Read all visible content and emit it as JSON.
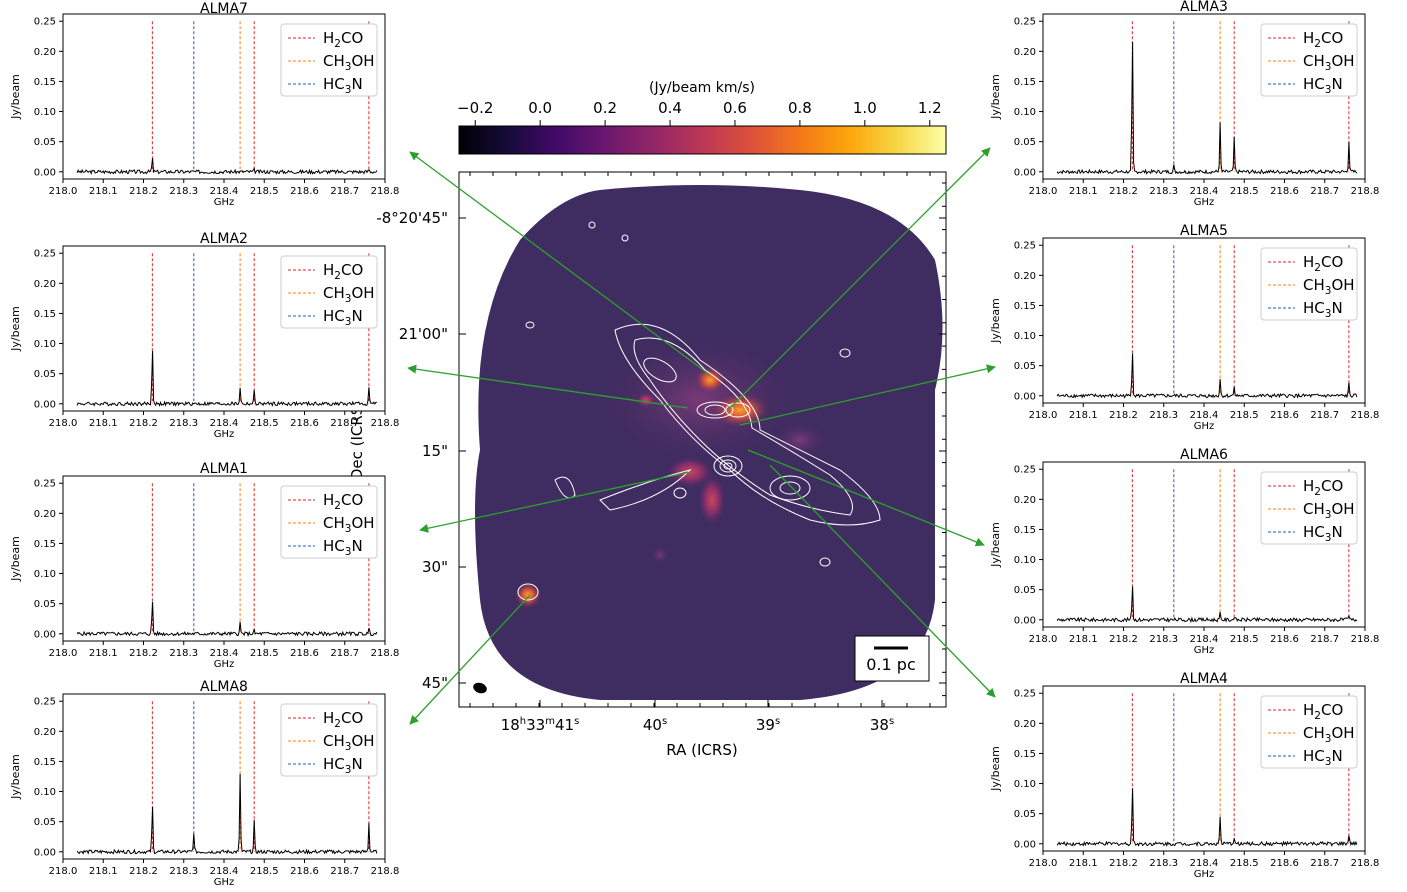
{
  "chart_data": [
    {
      "type": "image",
      "name": "moment-map",
      "xlabel": "RA (ICRS)",
      "ylabel": "Dec (ICRS)",
      "x_tick_labels": [
        "18h33m41s",
        "40s",
        "39s",
        "38s"
      ],
      "y_tick_labels": [
        "-8°20'45\"",
        "21'00\"",
        "15\"",
        "30\"",
        "45\""
      ],
      "colorbar": {
        "label": "(Jy/beam km/s)",
        "range": [
          -0.25,
          1.25
        ],
        "tick_labels": [
          "−0.2",
          "0.0",
          "0.2",
          "0.4",
          "0.6",
          "0.8",
          "1.0",
          "1.2"
        ],
        "colormap": "inferno"
      },
      "scalebar_label": "0.1 pc",
      "contours": true
    },
    {
      "type": "line",
      "title": "ALMA7",
      "xlabel": "GHz",
      "ylabel": "Jy/beam",
      "xlim": [
        218.0,
        218.8
      ],
      "ylim": [
        -0.012,
        0.262
      ],
      "x_ticks": [
        "218.0",
        "218.1",
        "218.2",
        "218.3",
        "218.4",
        "218.5",
        "218.6",
        "218.7",
        "218.8"
      ],
      "y_ticks": [
        "0.00",
        "0.05",
        "0.10",
        "0.15",
        "0.20",
        "0.25"
      ],
      "peaks": [
        [
          218.222,
          0.022
        ],
        [
          218.475,
          0.003
        ],
        [
          218.76,
          0.004
        ]
      ],
      "noise": 0.003
    },
    {
      "type": "line",
      "title": "ALMA2",
      "xlabel": "GHz",
      "ylabel": "Jy/beam",
      "xlim": [
        218.0,
        218.8
      ],
      "ylim": [
        -0.012,
        0.262
      ],
      "x_ticks": [
        "218.0",
        "218.1",
        "218.2",
        "218.3",
        "218.4",
        "218.5",
        "218.6",
        "218.7",
        "218.8"
      ],
      "y_ticks": [
        "0.00",
        "0.05",
        "0.10",
        "0.15",
        "0.20",
        "0.25"
      ],
      "peaks": [
        [
          218.222,
          0.097
        ],
        [
          218.44,
          0.028
        ],
        [
          218.475,
          0.02
        ],
        [
          218.76,
          0.03
        ]
      ],
      "noise": 0.003
    },
    {
      "type": "line",
      "title": "ALMA1",
      "xlabel": "GHz",
      "ylabel": "Jy/beam",
      "xlim": [
        218.0,
        218.8
      ],
      "ylim": [
        -0.012,
        0.262
      ],
      "x_ticks": [
        "218.0",
        "218.1",
        "218.2",
        "218.3",
        "218.4",
        "218.5",
        "218.6",
        "218.7",
        "218.8"
      ],
      "y_ticks": [
        "0.00",
        "0.05",
        "0.10",
        "0.15",
        "0.20",
        "0.25"
      ],
      "peaks": [
        [
          218.222,
          0.058
        ],
        [
          218.44,
          0.018
        ],
        [
          218.475,
          0.005
        ],
        [
          218.76,
          0.008
        ]
      ],
      "noise": 0.003
    },
    {
      "type": "line",
      "title": "ALMA8",
      "xlabel": "GHz",
      "ylabel": "Jy/beam",
      "xlim": [
        218.0,
        218.8
      ],
      "ylim": [
        -0.012,
        0.262
      ],
      "x_ticks": [
        "218.0",
        "218.1",
        "218.2",
        "218.3",
        "218.4",
        "218.5",
        "218.6",
        "218.7",
        "218.8"
      ],
      "y_ticks": [
        "0.00",
        "0.05",
        "0.10",
        "0.15",
        "0.20",
        "0.25"
      ],
      "peaks": [
        [
          218.222,
          0.08
        ],
        [
          218.325,
          0.033
        ],
        [
          218.44,
          0.13
        ],
        [
          218.475,
          0.05
        ],
        [
          218.76,
          0.048
        ]
      ],
      "noise": 0.003
    },
    {
      "type": "line",
      "title": "ALMA3",
      "xlabel": "GHz",
      "ylabel": "Jy/beam",
      "xlim": [
        218.0,
        218.8
      ],
      "ylim": [
        -0.012,
        0.262
      ],
      "x_ticks": [
        "218.0",
        "218.1",
        "218.2",
        "218.3",
        "218.4",
        "218.5",
        "218.6",
        "218.7",
        "218.8"
      ],
      "y_ticks": [
        "0.00",
        "0.05",
        "0.10",
        "0.15",
        "0.20",
        "0.25"
      ],
      "peaks": [
        [
          218.222,
          0.23
        ],
        [
          218.325,
          0.01
        ],
        [
          218.44,
          0.08
        ],
        [
          218.475,
          0.055
        ],
        [
          218.76,
          0.052
        ]
      ],
      "noise": 0.003
    },
    {
      "type": "line",
      "title": "ALMA5",
      "xlabel": "GHz",
      "ylabel": "Jy/beam",
      "xlim": [
        218.0,
        218.8
      ],
      "ylim": [
        -0.012,
        0.262
      ],
      "x_ticks": [
        "218.0",
        "218.1",
        "218.2",
        "218.3",
        "218.4",
        "218.5",
        "218.6",
        "218.7",
        "218.8"
      ],
      "y_ticks": [
        "0.00",
        "0.05",
        "0.10",
        "0.15",
        "0.20",
        "0.25"
      ],
      "peaks": [
        [
          218.222,
          0.078
        ],
        [
          218.44,
          0.028
        ],
        [
          218.475,
          0.018
        ],
        [
          218.76,
          0.02
        ]
      ],
      "noise": 0.003
    },
    {
      "type": "line",
      "title": "ALMA6",
      "xlabel": "GHz",
      "ylabel": "Jy/beam",
      "xlim": [
        218.0,
        218.8
      ],
      "ylim": [
        -0.012,
        0.262
      ],
      "x_ticks": [
        "218.0",
        "218.1",
        "218.2",
        "218.3",
        "218.4",
        "218.5",
        "218.6",
        "218.7",
        "218.8"
      ],
      "y_ticks": [
        "0.00",
        "0.05",
        "0.10",
        "0.15",
        "0.20",
        "0.25"
      ],
      "peaks": [
        [
          218.222,
          0.06
        ],
        [
          218.44,
          0.01
        ],
        [
          218.475,
          0.006
        ],
        [
          218.76,
          0.006
        ]
      ],
      "noise": 0.003
    },
    {
      "type": "line",
      "title": "ALMA4",
      "xlabel": "GHz",
      "ylabel": "Jy/beam",
      "xlim": [
        218.0,
        218.8
      ],
      "ylim": [
        -0.012,
        0.262
      ],
      "x_ticks": [
        "218.0",
        "218.1",
        "218.2",
        "218.3",
        "218.4",
        "218.5",
        "218.6",
        "218.7",
        "218.8"
      ],
      "y_ticks": [
        "0.00",
        "0.05",
        "0.10",
        "0.15",
        "0.20",
        "0.25"
      ],
      "peaks": [
        [
          218.222,
          0.098
        ],
        [
          218.44,
          0.045
        ],
        [
          218.475,
          0.012
        ],
        [
          218.76,
          0.015
        ]
      ],
      "noise": 0.003
    }
  ],
  "legend": {
    "entries": [
      {
        "base": "H",
        "sub": "2",
        "rest": "CO",
        "color": "#d62728"
      },
      {
        "base": "CH",
        "sub": "3",
        "rest": "OH",
        "color": "#ff7f0e"
      },
      {
        "base": "HC",
        "sub": "3",
        "rest": "N",
        "color": "#1f5fb4"
      }
    ]
  },
  "line_markers_ghz": [
    {
      "x": 218.222,
      "color": "#d62728"
    },
    {
      "x": 218.325,
      "color": "#1f5fb4"
    },
    {
      "x": 218.44,
      "color": "#ff7f0e"
    },
    {
      "x": 218.475,
      "color": "#d62728"
    },
    {
      "x": 218.76,
      "color": "#d62728"
    }
  ],
  "colors": {
    "arrow": "#2ca02c",
    "spectrum": "#000000",
    "contour": "#ffffff"
  }
}
